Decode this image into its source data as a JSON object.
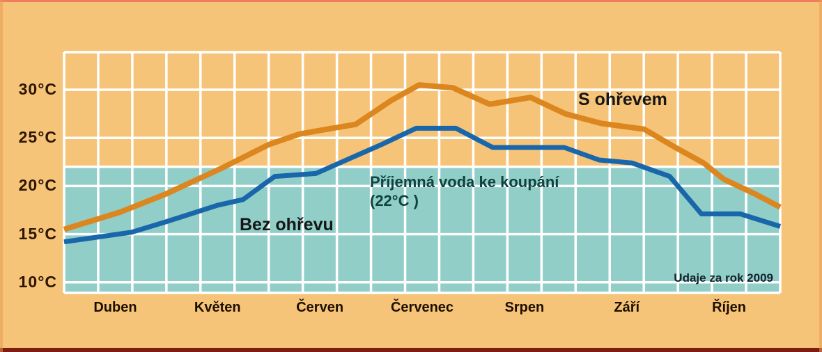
{
  "page": {
    "background_color": "#f6c478",
    "border_top_color": "#ee7e5f",
    "border_bottom_color": "#7d1d12",
    "border_side_color": "#e89a50"
  },
  "chart_data": {
    "type": "line",
    "title": "",
    "x_axis": {
      "categories": [
        "Duben",
        "Květen",
        "Červen",
        "Červenec",
        "Srpen",
        "Září",
        "Říjen"
      ]
    },
    "y_axis": {
      "tick_labels": [
        "30°C",
        "25°C",
        "20°C",
        "15°C",
        "10°C"
      ],
      "tick_values": [
        30,
        25,
        20,
        15,
        10
      ],
      "unit": "°C",
      "range_approx": [
        9,
        34
      ]
    },
    "grid": {
      "color": "#ffffff",
      "vertical_columns": 21,
      "columns_per_month": 3,
      "horizontal_lines_at_temps": [
        30,
        25,
        22,
        20,
        15,
        10
      ]
    },
    "comfort_zone": {
      "below_temp": 22,
      "fill_color": "#91cec8",
      "label_line1": "Příjemná voda ke koupání",
      "label_line2": "(22°C )",
      "label_color": "#0f4240"
    },
    "series": [
      {
        "name": "S ohřevem",
        "color": "#dc861f",
        "stroke_width": 8,
        "monthly_values_c": [
          17.1,
          21.6,
          25.9,
          30.4,
          28.9,
          26.2,
          20.5
        ],
        "vertices_month_temp": [
          [
            0,
            15.5
          ],
          [
            0.55,
            17.3
          ],
          [
            1.0,
            19.2
          ],
          [
            1.55,
            21.9
          ],
          [
            2.0,
            24.3
          ],
          [
            2.3,
            25.4
          ],
          [
            2.62,
            26.0
          ],
          [
            2.85,
            26.4
          ],
          [
            3.2,
            28.9
          ],
          [
            3.47,
            30.5
          ],
          [
            3.8,
            30.2
          ],
          [
            4.16,
            28.5
          ],
          [
            4.56,
            29.2
          ],
          [
            4.9,
            27.5
          ],
          [
            5.25,
            26.5
          ],
          [
            5.67,
            25.9
          ],
          [
            5.96,
            24.1
          ],
          [
            6.25,
            22.4
          ],
          [
            6.45,
            20.7
          ],
          [
            6.75,
            19.2
          ],
          [
            7.0,
            17.8
          ]
        ]
      },
      {
        "name": "Bez ohřevu",
        "color": "#1967aa",
        "stroke_width": 7,
        "monthly_values_c": [
          15.0,
          18.0,
          21.2,
          26.0,
          24.0,
          22.5,
          17.1
        ],
        "vertices_month_temp": [
          [
            0,
            14.2
          ],
          [
            0.66,
            15.2
          ],
          [
            1.0,
            16.3
          ],
          [
            1.5,
            18.0
          ],
          [
            1.75,
            18.6
          ],
          [
            2.06,
            21.0
          ],
          [
            2.46,
            21.3
          ],
          [
            3.1,
            24.3
          ],
          [
            3.44,
            26.0
          ],
          [
            3.83,
            26.0
          ],
          [
            4.19,
            24.0
          ],
          [
            4.89,
            24.0
          ],
          [
            5.23,
            22.7
          ],
          [
            5.55,
            22.4
          ],
          [
            5.92,
            21.0
          ],
          [
            6.23,
            17.1
          ],
          [
            6.61,
            17.1
          ],
          [
            7.0,
            15.8
          ]
        ]
      }
    ],
    "note": "Udaje za rok 2009"
  }
}
